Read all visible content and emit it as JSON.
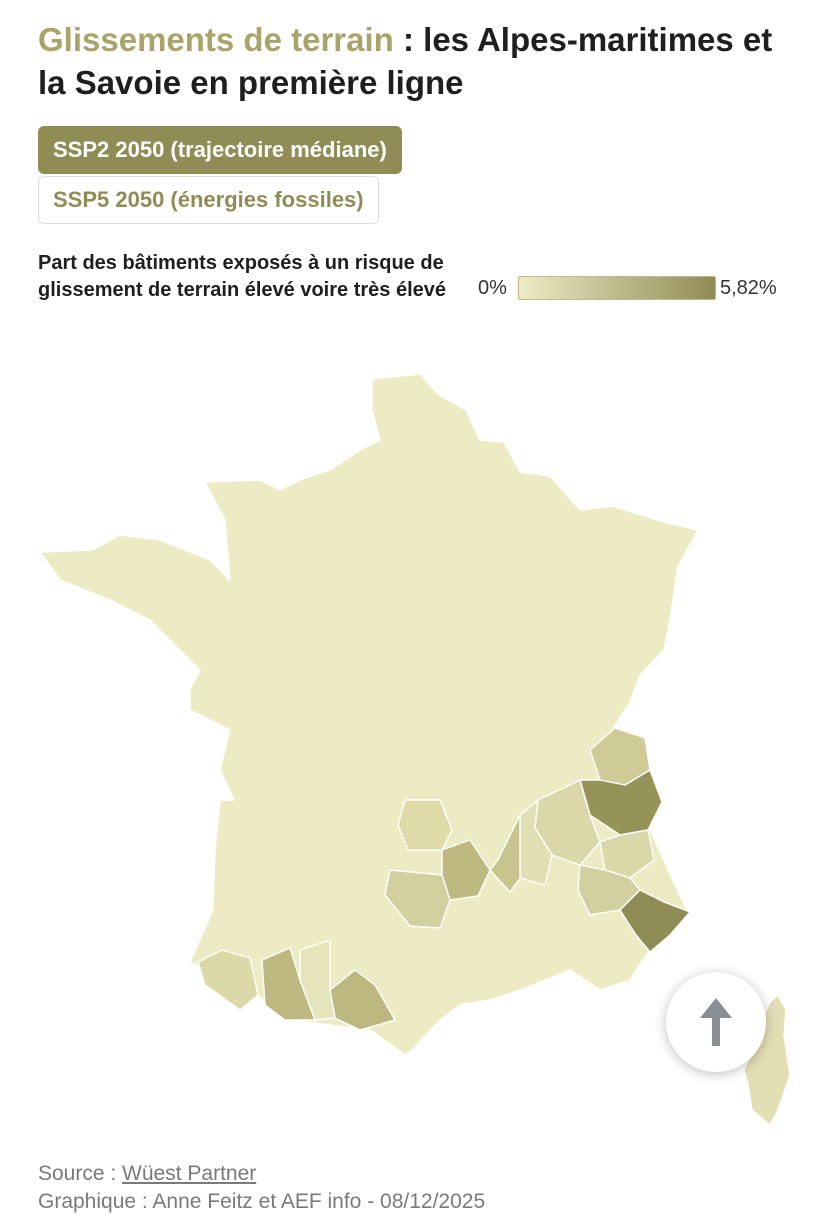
{
  "header": {
    "title_accent": "Glissements de terrain",
    "title_rest": " : les Alpes-maritimes et la Savoie en première ligne"
  },
  "scenarios": {
    "active_label": "SSP2 2050 (trajectoire médiane)",
    "inactive_label": "SSP5 2050 (énergies fossiles)"
  },
  "legend": {
    "label": "Part des bâtiments exposés à un risque de glissement de terrain élevé voire très élevé",
    "min_label": "0%",
    "max_label": "5,82%",
    "min_value": 0,
    "max_value": 5.82,
    "color_min": "#ecebc4",
    "color_max": "#8f8c55"
  },
  "map": {
    "base_color": "#ecebc4",
    "border_color": "#ffffff",
    "highlighted_regions": [
      {
        "name": "Savoie",
        "value": 5.0
      },
      {
        "name": "Alpes-Maritimes",
        "value": 5.82
      },
      {
        "name": "Haute-Savoie",
        "value": 2.0
      },
      {
        "name": "Isère",
        "value": 1.4
      },
      {
        "name": "Hautes-Alpes",
        "value": 1.2
      },
      {
        "name": "Alpes-de-Haute-Provence",
        "value": 1.4
      },
      {
        "name": "Drôme",
        "value": 0.9
      },
      {
        "name": "Ardèche",
        "value": 2.2
      },
      {
        "name": "Lozère",
        "value": 3.0
      },
      {
        "name": "Aveyron",
        "value": 1.6
      },
      {
        "name": "Cantal",
        "value": 1.0
      },
      {
        "name": "Pyrénées-Atlantiques",
        "value": 1.5
      },
      {
        "name": "Hautes-Pyrénées",
        "value": 3.0
      },
      {
        "name": "Ariège",
        "value": 3.0
      },
      {
        "name": "Corse",
        "value": 1.2
      }
    ]
  },
  "footer": {
    "source_prefix": "Source : ",
    "source_link": "Wüest Partner",
    "credits": "Graphique : Anne Feitz et AEF info - 08/12/2025"
  },
  "icons": {
    "scroll_top": "arrow-up-icon"
  }
}
